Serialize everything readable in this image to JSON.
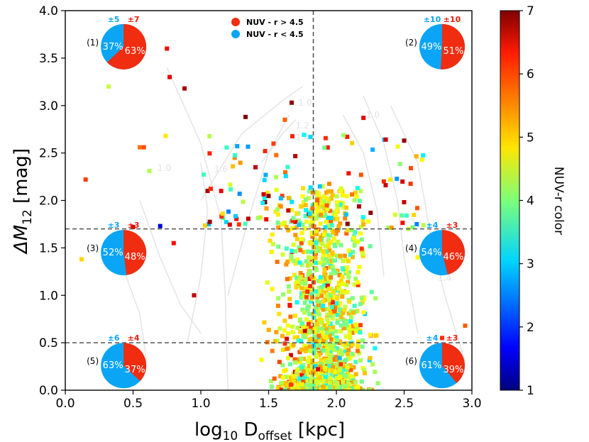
{
  "chart_data": {
    "type": "scatter",
    "xlabel_main": "log",
    "xlabel_sub": "10",
    "xlabel_var": "D",
    "xlabel_var_sub": "offset",
    "xlabel_unit": "[kpc]",
    "ylabel_main": "ΔM",
    "ylabel_sub": "12",
    "ylabel_unit": "[mag]",
    "xlim": [
      0.0,
      3.0
    ],
    "ylim": [
      0.0,
      4.0
    ],
    "x_ticks": [
      "0.0",
      "0.5",
      "1.0",
      "1.5",
      "2.0",
      "2.5",
      "3.0"
    ],
    "y_ticks": [
      "0.0",
      "0.5",
      "1.0",
      "1.5",
      "2.0",
      "2.5",
      "3.0",
      "3.5",
      "4.0"
    ],
    "vline_x": 1.83,
    "hlines_y": [
      0.5,
      1.7
    ],
    "colorbar": {
      "label": "NUV-r color",
      "range": [
        1,
        7
      ],
      "ticks": [
        "1",
        "2",
        "3",
        "4",
        "5",
        "6",
        "7"
      ]
    },
    "legend": [
      {
        "label": "NUV - r > 4.5",
        "color": "#f02d10"
      },
      {
        "label": "NUV - r < 4.5",
        "color": "#0aa5f5"
      }
    ],
    "contour_labels": [
      "1.0",
      "1.2",
      "1.4",
      "1.6",
      "1.0",
      "1.0",
      "1.2",
      "1.4"
    ],
    "pies": [
      {
        "id": "(1)",
        "blue_pct": 37,
        "red_pct": 63,
        "blue_label": "37%",
        "red_label": "63%",
        "blue_err": "±5",
        "red_err": "±7"
      },
      {
        "id": "(2)",
        "blue_pct": 49,
        "red_pct": 51,
        "blue_label": "49%",
        "red_label": "51%",
        "blue_err": "±10",
        "red_err": "±10"
      },
      {
        "id": "(3)",
        "blue_pct": 52,
        "red_pct": 48,
        "blue_label": "52%",
        "red_label": "48%",
        "blue_err": "±3",
        "red_err": "±3"
      },
      {
        "id": "(4)",
        "blue_pct": 54,
        "red_pct": 46,
        "blue_label": "54%",
        "red_label": "46%",
        "blue_err": "±4",
        "red_err": "±3"
      },
      {
        "id": "(5)",
        "blue_pct": 63,
        "red_pct": 37,
        "blue_label": "63%",
        "red_label": "37%",
        "blue_err": "±6",
        "red_err": "±4"
      },
      {
        "id": "(6)",
        "blue_pct": 61,
        "red_pct": 39,
        "blue_label": "61%",
        "red_label": "39%",
        "blue_err": "±4",
        "red_err": "±3"
      }
    ],
    "series": [
      {
        "name": "sparse_points",
        "x": [
          0.32,
          0.58,
          0.75,
          0.77,
          0.88,
          0.74,
          0.55,
          0.62,
          0.15,
          0.5,
          1.67,
          1.33,
          1.05,
          1.62,
          2.2,
          2.08,
          2.5,
          2.55,
          0.7,
          0.8,
          0.12,
          1.15,
          0.95,
          1.9,
          1.25,
          2.35,
          2.6,
          0.45,
          2.78,
          2.95
        ],
        "y": [
          3.2,
          2.56,
          3.6,
          3.3,
          3.18,
          2.68,
          2.56,
          2.31,
          2.22,
          1.72,
          3.03,
          2.88,
          2.1,
          2.85,
          2.87,
          2.67,
          2.63,
          2.34,
          1.73,
          1.55,
          1.38,
          2.1,
          1.0,
          2.15,
          2.45,
          2.2,
          1.4,
          1.55,
          0.55,
          0.68
        ],
        "c": [
          4.4,
          5.8,
          6.2,
          6.4,
          6.8,
          4.9,
          5.6,
          4.3,
          5.9,
          6.5,
          6.9,
          7.0,
          6.8,
          5.7,
          6.4,
          6.1,
          6.9,
          5.8,
          1.5,
          6.2,
          5.0,
          6.4,
          6.6,
          4.5,
          5.5,
          6.0,
          4.8,
          5.6,
          6.0,
          5.7
        ]
      }
    ]
  }
}
